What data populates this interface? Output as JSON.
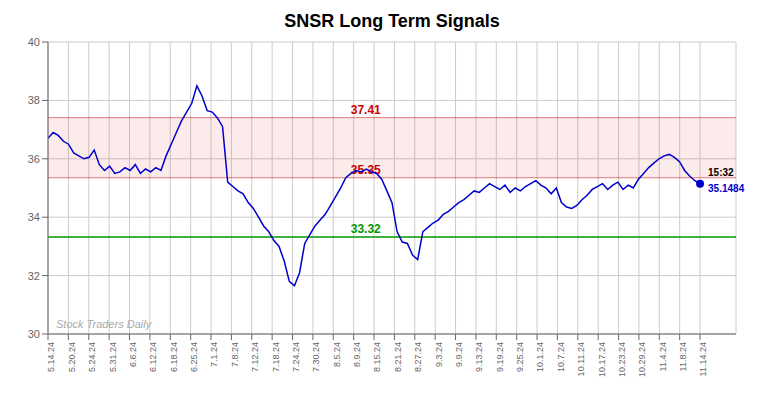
{
  "chart_data": {
    "type": "line",
    "title": "SNSR Long Term Signals",
    "x": [
      0,
      1,
      2,
      3,
      4,
      5,
      6,
      7,
      8,
      9,
      10,
      11,
      12,
      13,
      14,
      15,
      16,
      17,
      18,
      19,
      20,
      21,
      22,
      23,
      24,
      25,
      26,
      27,
      28,
      29,
      30,
      31,
      32,
      33,
      34,
      35,
      36,
      37,
      38,
      39,
      40,
      41,
      42,
      43,
      44,
      45,
      46,
      47,
      48,
      49,
      50,
      51,
      52,
      53,
      54,
      55,
      56,
      57,
      58,
      59,
      60,
      61,
      62,
      63,
      64,
      65,
      66,
      67,
      68,
      69,
      70,
      71,
      72,
      73,
      74,
      75,
      76,
      77,
      78,
      79,
      80,
      81,
      82,
      83,
      84,
      85,
      86,
      87,
      88,
      89,
      90,
      91,
      92,
      93,
      94,
      95,
      96,
      97,
      98,
      99,
      100,
      101,
      102,
      103,
      104,
      105,
      106,
      107,
      108,
      109,
      110,
      111,
      112,
      113,
      114,
      115,
      116,
      117,
      118,
      119,
      120,
      121,
      122,
      123,
      124,
      125,
      126,
      127
    ],
    "xlim": [
      0,
      134
    ],
    "xticks": [
      {
        "value": 0,
        "label": "5.14.24"
      },
      {
        "value": 3.96875,
        "label": "5.20.24"
      },
      {
        "value": 7.9375,
        "label": "5.24.24"
      },
      {
        "value": 11.90625,
        "label": "5.31.24"
      },
      {
        "value": 15.875,
        "label": "6.6.24"
      },
      {
        "value": 19.84375,
        "label": "6.12.24"
      },
      {
        "value": 23.8125,
        "label": "6.18.24"
      },
      {
        "value": 27.78125,
        "label": "6.25.24"
      },
      {
        "value": 31.75,
        "label": "7.1.24"
      },
      {
        "value": 35.71875,
        "label": "7.8.24"
      },
      {
        "value": 39.6875,
        "label": "7.12.24"
      },
      {
        "value": 43.65625,
        "label": "7.18.24"
      },
      {
        "value": 47.625,
        "label": "7.24.24"
      },
      {
        "value": 51.59375,
        "label": "7.30.24"
      },
      {
        "value": 55.5625,
        "label": "8.5.24"
      },
      {
        "value": 59.53125,
        "label": "8.9.24"
      },
      {
        "value": 63.5,
        "label": "8.15.24"
      },
      {
        "value": 67.46875,
        "label": "8.21.24"
      },
      {
        "value": 71.4375,
        "label": "8.27.24"
      },
      {
        "value": 75.40625,
        "label": "9.3.24"
      },
      {
        "value": 79.375,
        "label": "9.9.24"
      },
      {
        "value": 83.34375,
        "label": "9.13.24"
      },
      {
        "value": 87.3125,
        "label": "9.19.24"
      },
      {
        "value": 91.28125,
        "label": "9.25.24"
      },
      {
        "value": 95.25,
        "label": "10.1.24"
      },
      {
        "value": 99.21875,
        "label": "10.7.24"
      },
      {
        "value": 103.1875,
        "label": "10.11.24"
      },
      {
        "value": 107.15625,
        "label": "10.17.24"
      },
      {
        "value": 111.125,
        "label": "10.23.24"
      },
      {
        "value": 115.09375,
        "label": "10.29.24"
      },
      {
        "value": 119.0625,
        "label": "11.4.24"
      },
      {
        "value": 123.03125,
        "label": "11.8.24"
      },
      {
        "value": 127,
        "label": "11.14.24"
      }
    ],
    "ylim": [
      30,
      40
    ],
    "yticks": [
      30,
      32,
      34,
      36,
      38,
      40
    ],
    "grid": true,
    "series": [
      {
        "color": "#0000cc",
        "values": [
          36.7,
          36.9,
          36.8,
          36.6,
          36.5,
          36.2,
          36.1,
          36.0,
          36.05,
          36.3,
          35.8,
          35.6,
          35.75,
          35.5,
          35.55,
          35.7,
          35.6,
          35.8,
          35.5,
          35.65,
          35.55,
          35.7,
          35.6,
          36.1,
          36.5,
          36.9,
          37.3,
          37.6,
          37.9,
          38.5,
          38.15,
          37.65,
          37.6,
          37.4,
          37.1,
          35.2,
          35.05,
          34.9,
          34.8,
          34.5,
          34.3,
          34.0,
          33.7,
          33.5,
          33.2,
          33.0,
          32.5,
          31.8,
          31.65,
          32.1,
          33.1,
          33.4,
          33.7,
          33.9,
          34.1,
          34.4,
          34.7,
          35.0,
          35.35,
          35.5,
          35.6,
          35.55,
          35.65,
          35.55,
          35.5,
          35.3,
          34.9,
          34.5,
          33.5,
          33.15,
          33.1,
          32.7,
          32.55,
          33.5,
          33.65,
          33.8,
          33.9,
          34.1,
          34.2,
          34.35,
          34.5,
          34.6,
          34.75,
          34.9,
          34.85,
          35.0,
          35.15,
          35.05,
          34.95,
          35.1,
          34.85,
          35.0,
          34.9,
          35.05,
          35.15,
          35.25,
          35.1,
          35.0,
          34.8,
          35.0,
          34.5,
          34.35,
          34.3,
          34.4,
          34.6,
          34.75,
          34.95,
          35.05,
          35.15,
          34.95,
          35.1,
          35.2,
          34.95,
          35.1,
          35.0,
          35.3,
          35.5,
          35.7,
          35.85,
          36.0,
          36.1,
          36.15,
          36.05,
          35.9,
          35.6,
          35.4,
          35.25,
          35.1484
        ]
      }
    ],
    "resistance": {
      "high": {
        "value": 37.41,
        "label": "37.41",
        "color": "#cc0000"
      },
      "low": {
        "value": 35.35,
        "label": "35.35",
        "color": "#cc0000"
      }
    },
    "support": {
      "value": 33.32,
      "label": "33.32",
      "color": "#009900"
    },
    "last_point": {
      "x": 127,
      "y": 35.1484,
      "time": "15:32",
      "label": "35.1484",
      "color": "#0000cc",
      "time_color": "#000000"
    },
    "watermark": {
      "text": "Stock Traders Daily",
      "color": "#aaaaaa"
    }
  }
}
